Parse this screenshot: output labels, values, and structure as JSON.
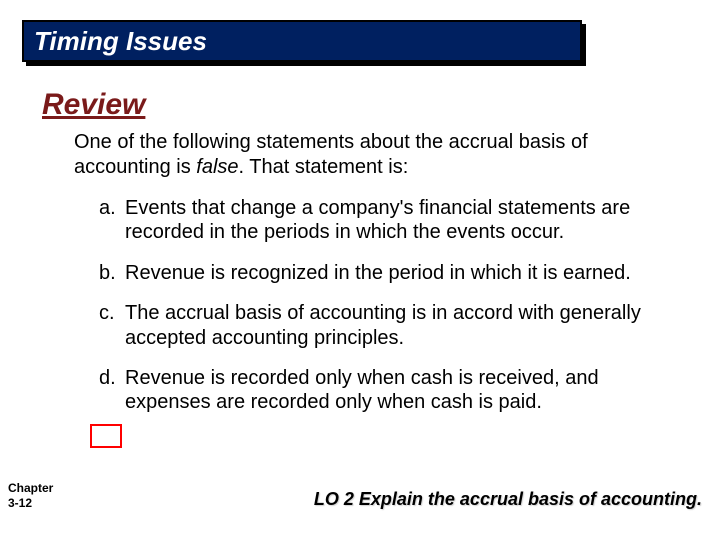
{
  "slide": {
    "title": "Timing Issues",
    "title_bg_color": "#002060",
    "title_text_color": "#ffffff",
    "review_label": "Review",
    "review_color": "#7a1a1a",
    "question_prefix": "One of the following statements about the accrual basis of accounting is ",
    "question_emphasis": "false",
    "question_suffix": ".  That statement is:",
    "options": [
      {
        "letter": "a.",
        "text": "Events that change a company's financial statements are recorded in the periods in which the events occur."
      },
      {
        "letter": "b.",
        "text": "Revenue is recognized in the period in which it is earned."
      },
      {
        "letter": "c.",
        "text": "The accrual basis of accounting is in accord with generally accepted accounting principles."
      },
      {
        "letter": "d.",
        "text": "Revenue is recorded only when cash is received, and expenses are recorded only when cash is paid."
      }
    ],
    "highlight_index": 3,
    "highlight_color": "#ff0000",
    "chapter": "Chapter\n3-12",
    "learning_objective": "LO 2  Explain the accrual basis of accounting.",
    "background_color": "#ffffff",
    "body_font_size": 20,
    "title_font_size": 26
  }
}
